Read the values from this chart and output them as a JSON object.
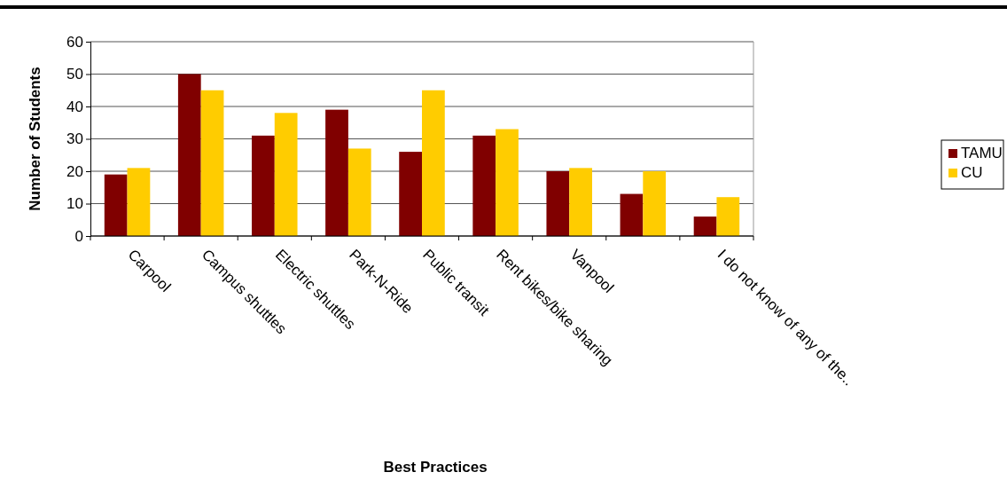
{
  "chart_data": {
    "type": "bar",
    "xlabel": "Best Practices",
    "ylabel": "Number of Students",
    "categories": [
      "Carpool",
      "Campus shuttles",
      "Electric shuttles",
      "Park-N-Ride",
      "Public transit",
      "Rent bikes/bike sharing",
      "Vanpool",
      null,
      "I do not know of any of the.."
    ],
    "series": [
      {
        "name": "TAMU",
        "color": "#800000",
        "values": [
          19,
          50,
          31,
          39,
          26,
          31,
          20,
          13,
          6
        ]
      },
      {
        "name": "CU",
        "color": "#ffcc00",
        "values": [
          21,
          45,
          38,
          27,
          45,
          33,
          21,
          20,
          12
        ]
      }
    ],
    "ylim": [
      0,
      60
    ],
    "yticks": [
      0,
      10,
      20,
      30,
      40,
      50,
      60
    ],
    "grid": "y",
    "legend": "right"
  }
}
